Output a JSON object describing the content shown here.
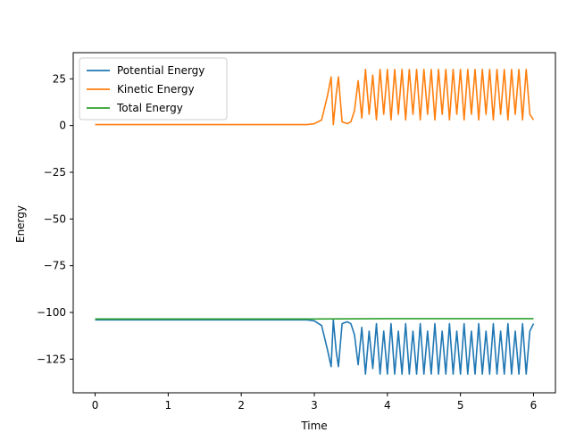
{
  "chart_data": {
    "type": "line",
    "title": "",
    "xlabel": "Time",
    "ylabel": "Energy",
    "xlim": [
      -0.3,
      6.3
    ],
    "ylim": [
      -143,
      39
    ],
    "xticks": [
      0,
      1,
      2,
      3,
      4,
      5,
      6
    ],
    "xtick_labels": [
      "0",
      "1",
      "2",
      "3",
      "4",
      "5",
      "6"
    ],
    "yticks": [
      25,
      0,
      -25,
      -50,
      -75,
      -100,
      -125
    ],
    "ytick_labels": [
      "25",
      "0",
      "−25",
      "−50",
      "−75",
      "−100",
      "−125"
    ],
    "grid": false,
    "legend_position": "top-left",
    "series": [
      {
        "name": "Potential Energy",
        "color": "#1f77b4",
        "x": [
          0,
          0.5,
          1,
          1.5,
          2,
          2.5,
          2.9,
          3.0,
          3.1,
          3.18,
          3.23,
          3.26,
          3.3,
          3.33,
          3.38,
          3.45,
          3.5,
          3.55,
          3.6,
          3.65,
          3.7,
          3.75,
          3.8,
          3.85,
          3.9,
          3.95,
          4.0,
          4.05,
          4.1,
          4.15,
          4.2,
          4.25,
          4.3,
          4.35,
          4.4,
          4.45,
          4.5,
          4.55,
          4.6,
          4.65,
          4.7,
          4.75,
          4.8,
          4.85,
          4.9,
          4.95,
          5.0,
          5.05,
          5.1,
          5.15,
          5.2,
          5.25,
          5.3,
          5.35,
          5.4,
          5.45,
          5.5,
          5.55,
          5.6,
          5.65,
          5.7,
          5.75,
          5.8,
          5.85,
          5.9,
          5.95,
          6.0
        ],
        "values": [
          -104,
          -104,
          -104,
          -104,
          -104,
          -104,
          -104,
          -104.5,
          -107,
          -120,
          -129,
          -104,
          -121,
          -129,
          -106,
          -105,
          -106,
          -112,
          -128,
          -108,
          -133,
          -110,
          -130,
          -106,
          -133,
          -110,
          -133,
          -106,
          -133,
          -110,
          -133,
          -106,
          -133,
          -110,
          -133,
          -106,
          -133,
          -110,
          -133,
          -106,
          -133,
          -110,
          -133,
          -106,
          -133,
          -110,
          -133,
          -106,
          -133,
          -110,
          -133,
          -106,
          -133,
          -110,
          -133,
          -106,
          -133,
          -110,
          -133,
          -106,
          -133,
          -110,
          -133,
          -106,
          -133,
          -110,
          -106
        ]
      },
      {
        "name": "Kinetic Energy",
        "color": "#ff7f0e",
        "x": [
          0,
          0.5,
          1,
          1.5,
          2,
          2.5,
          2.9,
          3.0,
          3.1,
          3.18,
          3.23,
          3.26,
          3.3,
          3.33,
          3.38,
          3.45,
          3.5,
          3.55,
          3.6,
          3.65,
          3.7,
          3.75,
          3.8,
          3.85,
          3.9,
          3.95,
          4.0,
          4.05,
          4.1,
          4.15,
          4.2,
          4.25,
          4.3,
          4.35,
          4.4,
          4.45,
          4.5,
          4.55,
          4.6,
          4.65,
          4.7,
          4.75,
          4.8,
          4.85,
          4.9,
          4.95,
          5.0,
          5.05,
          5.1,
          5.15,
          5.2,
          5.25,
          5.3,
          5.35,
          5.4,
          5.45,
          5.5,
          5.55,
          5.6,
          5.65,
          5.7,
          5.75,
          5.8,
          5.85,
          5.9,
          5.95,
          6.0
        ],
        "values": [
          0.5,
          0.5,
          0.5,
          0.5,
          0.5,
          0.5,
          0.5,
          1,
          3,
          16,
          26,
          0.5,
          17,
          26,
          2,
          1,
          2,
          8,
          24,
          4,
          30,
          6,
          27,
          3,
          30,
          6,
          30,
          3,
          30,
          6,
          30,
          3,
          30,
          6,
          30,
          3,
          30,
          6,
          30,
          3,
          30,
          6,
          30,
          3,
          30,
          6,
          30,
          3,
          30,
          6,
          30,
          3,
          30,
          6,
          30,
          3,
          30,
          6,
          30,
          3,
          30,
          6,
          30,
          3,
          30,
          6,
          3
        ]
      },
      {
        "name": "Total Energy",
        "color": "#2ca02c",
        "x": [
          0,
          1,
          2,
          3,
          4,
          5,
          6
        ],
        "values": [
          -103.5,
          -103.5,
          -103.5,
          -103.5,
          -103.3,
          -103.3,
          -103.3
        ]
      }
    ]
  }
}
